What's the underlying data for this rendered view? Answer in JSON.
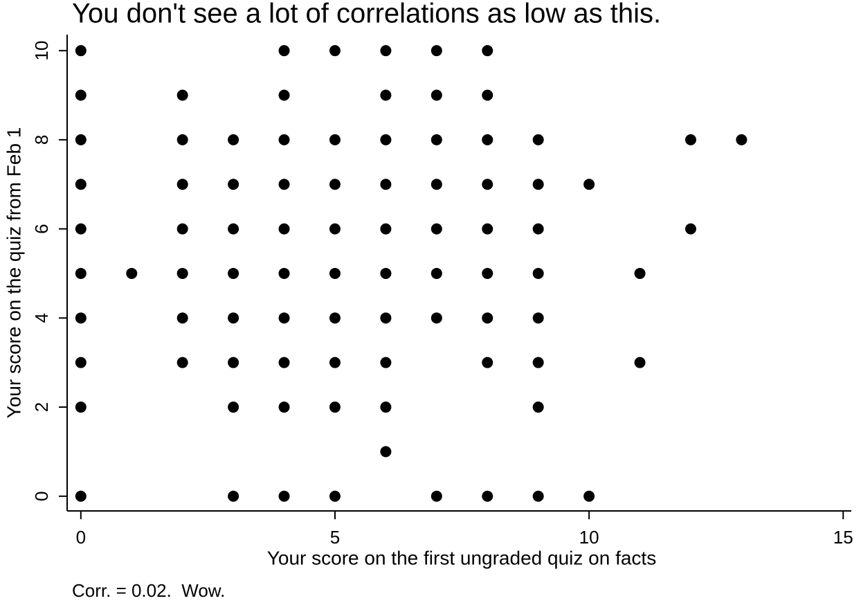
{
  "chart_data": {
    "type": "scatter",
    "title": "You don't see a lot of correlations as low as this.",
    "x_label": "Your score on the first ungraded quiz on facts",
    "y_label": "Your score on the quiz from Feb 1",
    "note": "Corr. = 0.02.  Wow.",
    "color": "#000000",
    "x": [
      0,
      0,
      0,
      0,
      0,
      0,
      0,
      0,
      0,
      0,
      1,
      2,
      2,
      2,
      2,
      2,
      2,
      2,
      3,
      3,
      3,
      3,
      3,
      3,
      3,
      3,
      4,
      4,
      4,
      4,
      4,
      4,
      4,
      4,
      4,
      4,
      5,
      5,
      5,
      5,
      5,
      5,
      5,
      5,
      5,
      6,
      6,
      6,
      6,
      6,
      6,
      6,
      6,
      6,
      6,
      7,
      7,
      7,
      7,
      7,
      7,
      7,
      7,
      8,
      8,
      8,
      8,
      8,
      8,
      8,
      8,
      8,
      9,
      9,
      9,
      9,
      9,
      9,
      9,
      9,
      10,
      10,
      11,
      11,
      12,
      12,
      13
    ],
    "y": [
      10,
      9,
      8,
      7,
      6,
      5,
      4,
      3,
      2,
      0,
      5,
      9,
      8,
      7,
      6,
      5,
      4,
      3,
      8,
      7,
      6,
      5,
      4,
      3,
      2,
      0,
      10,
      9,
      8,
      7,
      6,
      5,
      4,
      3,
      2,
      0,
      10,
      8,
      7,
      6,
      5,
      4,
      3,
      2,
      0,
      10,
      9,
      8,
      7,
      6,
      5,
      4,
      3,
      2,
      1,
      10,
      9,
      8,
      7,
      6,
      5,
      4,
      0,
      10,
      9,
      8,
      7,
      6,
      5,
      4,
      3,
      0,
      8,
      7,
      6,
      5,
      4,
      3,
      2,
      0,
      7,
      0,
      5,
      3,
      8,
      6,
      8
    ],
    "xlim": [
      -0.27,
      15.16
    ],
    "ylim": [
      -0.33,
      10.36
    ],
    "xticks": [
      0,
      5,
      10,
      15
    ],
    "yticks": [
      0,
      2,
      4,
      6,
      8,
      10
    ],
    "grid": false
  }
}
